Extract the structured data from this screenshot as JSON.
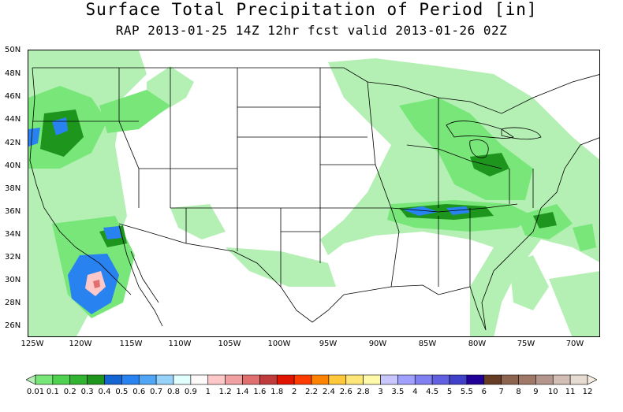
{
  "title": "Surface Total Precipitation of Period [in]",
  "subtitle": "RAP 2013-01-25 14Z 12hr fcst valid 2013-01-26 02Z",
  "lat_labels": [
    "50N",
    "48N",
    "46N",
    "44N",
    "42N",
    "40N",
    "38N",
    "36N",
    "34N",
    "32N",
    "30N",
    "28N",
    "26N"
  ],
  "lon_labels": [
    "125W",
    "120W",
    "115W",
    "110W",
    "105W",
    "100W",
    "95W",
    "90W",
    "85W",
    "80W",
    "75W",
    "70W"
  ],
  "colorbar": {
    "levels": [
      "0.01",
      "0.1",
      "0.2",
      "0.3",
      "0.4",
      "0.5",
      "0.6",
      "0.7",
      "0.8",
      "0.9",
      "1",
      "1.2",
      "1.4",
      "1.6",
      "1.8",
      "2",
      "2.2",
      "2.4",
      "2.6",
      "2.8",
      "3",
      "3.5",
      "4",
      "4.5",
      "5",
      "5.5",
      "6",
      "7",
      "8",
      "9",
      "10",
      "11",
      "12"
    ],
    "colors": [
      "#b4f0b4",
      "#78e678",
      "#50d250",
      "#32b432",
      "#1e961e",
      "#1464d2",
      "#2882f0",
      "#50a5f5",
      "#96d2fa",
      "#e1ffff",
      "#fffafa",
      "#ffc8c8",
      "#f0a0a0",
      "#e07070",
      "#c03c3c",
      "#e11400",
      "#ff3c00",
      "#ff8200",
      "#ffc83c",
      "#ffe678",
      "#fffaaa",
      "#c8c8ff",
      "#a0a0ff",
      "#8080f0",
      "#6060e0",
      "#4040c8",
      "#200096",
      "#663c24",
      "#8c6450",
      "#a07868",
      "#b4968c",
      "#d2beb4",
      "#e6dcd2",
      "#f5ebe1"
    ]
  }
}
